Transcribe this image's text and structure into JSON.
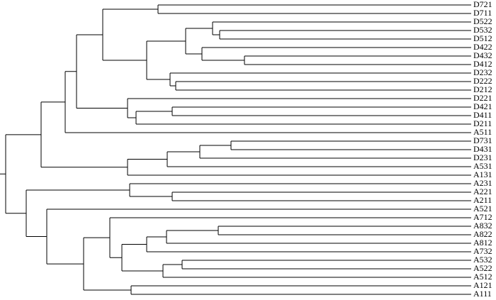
{
  "leaves": [
    "D721",
    "D711",
    "D522",
    "D532",
    "D512",
    "D422",
    "D432",
    "D412",
    "D232",
    "D222",
    "D212",
    "D221",
    "D421",
    "D411",
    "D211",
    "A511",
    "D731",
    "D431",
    "D231",
    "A531",
    "A131",
    "A231",
    "A221",
    "A211",
    "A521",
    "A712",
    "A832",
    "A822",
    "A812",
    "A732",
    "A532",
    "A522",
    "A512",
    "A121",
    "A111"
  ]
}
